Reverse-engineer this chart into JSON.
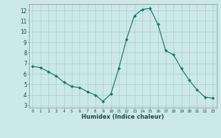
{
  "x": [
    0,
    1,
    2,
    3,
    4,
    5,
    6,
    7,
    8,
    9,
    10,
    11,
    12,
    13,
    14,
    15,
    16,
    17,
    18,
    19,
    20,
    21,
    22,
    23
  ],
  "y": [
    6.7,
    6.6,
    6.2,
    5.8,
    5.2,
    4.8,
    4.7,
    4.3,
    4.0,
    3.4,
    4.1,
    6.5,
    9.3,
    11.5,
    12.1,
    12.2,
    10.7,
    8.2,
    7.8,
    6.5,
    5.4,
    4.5,
    3.8,
    3.7
  ],
  "xlabel": "Humidex (Indice chaleur)",
  "ylim": [
    2.8,
    12.6
  ],
  "xlim": [
    -0.5,
    23.5
  ],
  "yticks": [
    3,
    4,
    5,
    6,
    7,
    8,
    9,
    10,
    11,
    12
  ],
  "xticks": [
    0,
    1,
    2,
    3,
    4,
    5,
    6,
    7,
    8,
    9,
    10,
    11,
    12,
    13,
    14,
    15,
    16,
    17,
    18,
    19,
    20,
    21,
    22,
    23
  ],
  "xtick_labels": [
    "0",
    "1",
    "2",
    "3",
    "4",
    "5",
    "6",
    "7",
    "8",
    "9",
    "10",
    "11",
    "12",
    "13",
    "14",
    "15",
    "16",
    "17",
    "18",
    "19",
    "20",
    "21",
    "22",
    "23"
  ],
  "line_color": "#1a7a6e",
  "marker_color": "#1a7a6e",
  "bg_color": "#cce8e8",
  "grid_color": "#aed4d4",
  "title": ""
}
